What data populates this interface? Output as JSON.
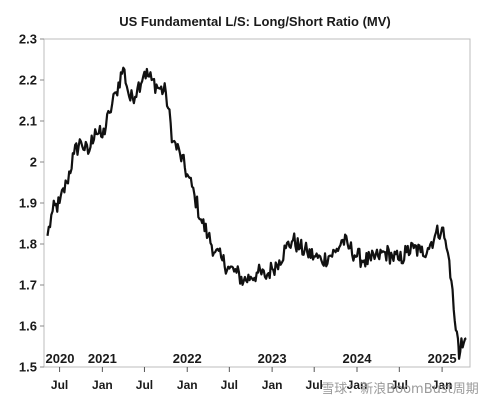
{
  "chart_data": {
    "type": "line",
    "title": "US Fundamental L/S: Long/Short Ratio (MV)",
    "xlabel": "",
    "ylabel": "",
    "ylim": [
      1.5,
      2.3
    ],
    "yticks": [
      "1.5",
      "1.6",
      "1.7",
      "1.8",
      "1.9",
      "2",
      "2.1",
      "2.2",
      "2.3"
    ],
    "year_labels": [
      "2020",
      "2021",
      "2022",
      "2023",
      "2024",
      "2025"
    ],
    "month_labels": [
      "Jul",
      "Jan",
      "Jul",
      "Jan",
      "Jul",
      "Jan",
      "Jul",
      "Jan",
      "Jul",
      "Jan"
    ],
    "grid": false,
    "legend": "none",
    "line_color": "#111111",
    "series": [
      {
        "x": [
          "2020-05-10",
          "2020-06-01",
          "2020-07-01",
          "2020-08-01",
          "2020-09-01",
          "2020-10-01",
          "2020-11-01",
          "2020-12-01",
          "2021-01-01",
          "2021-02-01",
          "2021-03-01",
          "2021-04-01",
          "2021-05-01",
          "2021-06-01",
          "2021-07-01",
          "2021-08-01",
          "2021-09-01",
          "2021-10-01",
          "2021-11-01",
          "2021-12-01",
          "2022-01-01",
          "2022-02-01",
          "2022-03-01",
          "2022-04-01",
          "2022-05-01",
          "2022-06-01",
          "2022-07-01",
          "2022-08-01",
          "2022-09-01",
          "2022-10-01",
          "2022-11-01",
          "2022-12-01",
          "2023-01-01",
          "2023-02-01",
          "2023-03-01",
          "2023-04-01",
          "2023-05-01",
          "2023-06-01",
          "2023-07-01",
          "2023-08-01",
          "2023-09-01",
          "2023-10-01",
          "2023-11-01",
          "2023-12-01",
          "2024-01-01",
          "2024-02-01",
          "2024-03-01",
          "2024-04-01",
          "2024-05-01",
          "2024-06-01",
          "2024-07-01",
          "2024-08-01",
          "2024-09-01",
          "2024-10-01",
          "2024-11-01",
          "2024-12-01",
          "2025-01-01",
          "2025-01-20",
          "2025-02-01",
          "2025-02-10",
          "2025-02-20",
          "2025-03-01",
          "2025-03-10",
          "2025-03-15",
          "2025-03-25",
          "2025-04-05",
          "2025-04-15"
        ],
        "values": [
          1.82,
          1.88,
          1.9,
          1.95,
          2.02,
          2.05,
          2.02,
          2.08,
          2.06,
          2.12,
          2.17,
          2.23,
          2.15,
          2.18,
          2.22,
          2.2,
          2.18,
          2.17,
          2.05,
          2.02,
          1.97,
          1.92,
          1.86,
          1.82,
          1.78,
          1.76,
          1.74,
          1.73,
          1.71,
          1.72,
          1.73,
          1.72,
          1.74,
          1.76,
          1.79,
          1.81,
          1.79,
          1.78,
          1.77,
          1.76,
          1.77,
          1.78,
          1.81,
          1.79,
          1.77,
          1.76,
          1.76,
          1.77,
          1.78,
          1.77,
          1.76,
          1.78,
          1.79,
          1.78,
          1.79,
          1.82,
          1.84,
          1.79,
          1.76,
          1.71,
          1.64,
          1.59,
          1.57,
          1.52,
          1.57,
          1.56,
          1.57
        ]
      }
    ]
  },
  "watermark": "雪球：新浪BoomBust周期"
}
